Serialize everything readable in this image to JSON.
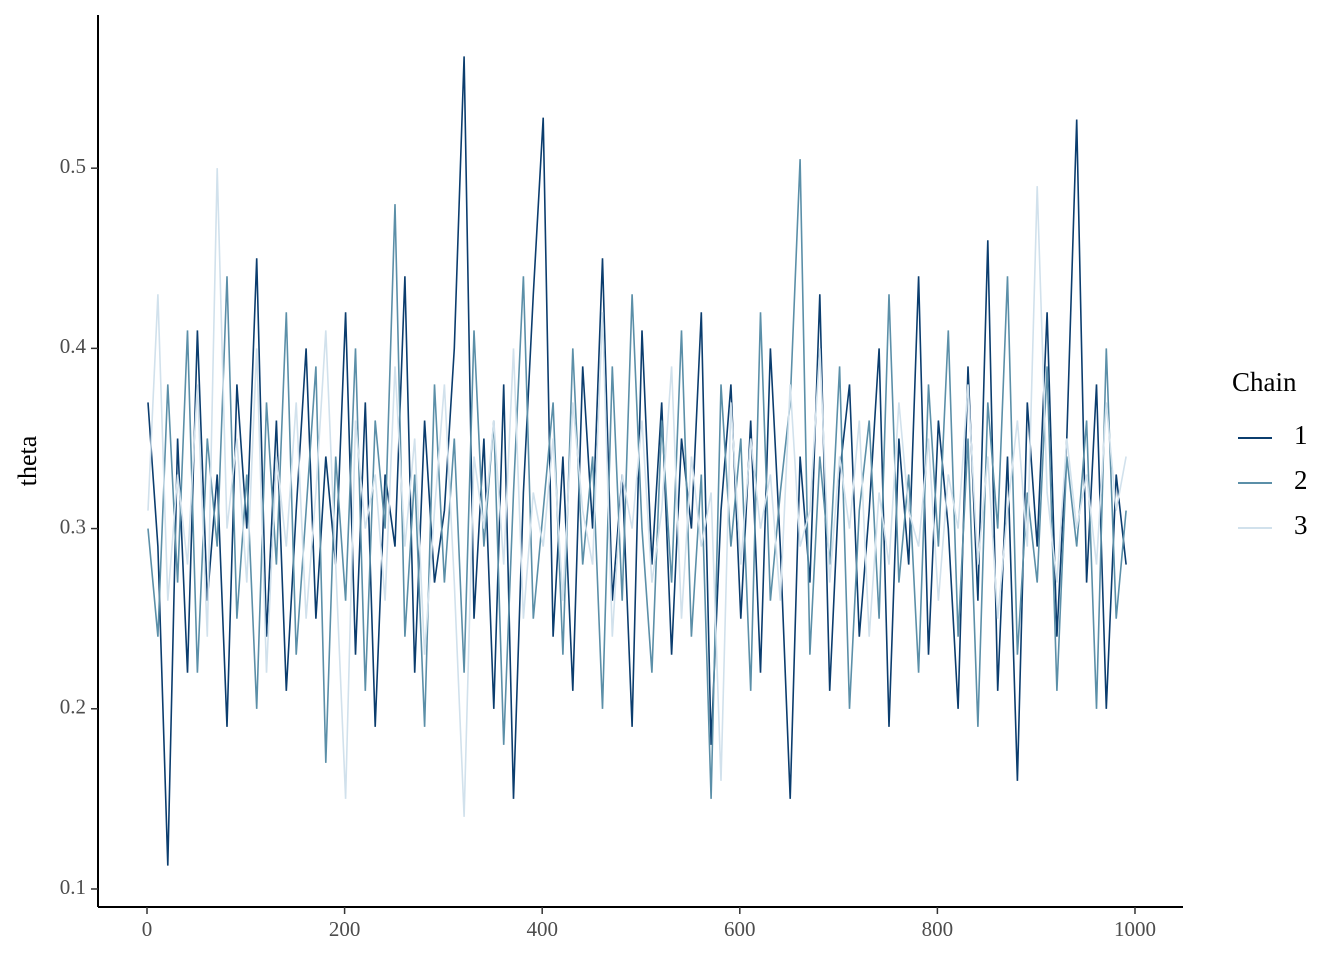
{
  "chart_data": {
    "type": "line",
    "y_label": "theta",
    "legend_title": "Chain",
    "legend_position": "right",
    "xlim": [
      -49.6,
      1048.6
    ],
    "ylim": [
      0.09,
      0.585
    ],
    "xticks": [
      0,
      200,
      400,
      600,
      800,
      1000
    ],
    "yticks": [
      0.1,
      0.2,
      0.3,
      0.4,
      0.5
    ],
    "grid": false,
    "x": [
      1,
      11,
      21,
      31,
      41,
      51,
      61,
      71,
      81,
      91,
      101,
      111,
      121,
      131,
      141,
      151,
      161,
      171,
      181,
      191,
      201,
      211,
      221,
      231,
      241,
      251,
      261,
      271,
      281,
      291,
      301,
      311,
      321,
      331,
      341,
      351,
      361,
      371,
      381,
      391,
      401,
      411,
      421,
      431,
      441,
      451,
      461,
      471,
      481,
      491,
      501,
      511,
      521,
      531,
      541,
      551,
      561,
      571,
      581,
      591,
      601,
      611,
      621,
      631,
      641,
      651,
      661,
      671,
      681,
      691,
      701,
      711,
      721,
      731,
      741,
      751,
      761,
      771,
      781,
      791,
      801,
      811,
      821,
      831,
      841,
      851,
      861,
      871,
      881,
      891,
      901,
      911,
      921,
      931,
      941,
      951,
      961,
      971,
      981,
      991
    ],
    "series": [
      {
        "name": "1",
        "color": "#0b3d6e",
        "values": [
          0.37,
          0.29,
          0.113,
          0.35,
          0.22,
          0.41,
          0.26,
          0.33,
          0.19,
          0.38,
          0.3,
          0.45,
          0.24,
          0.36,
          0.21,
          0.31,
          0.4,
          0.25,
          0.34,
          0.28,
          0.42,
          0.23,
          0.37,
          0.19,
          0.33,
          0.29,
          0.44,
          0.22,
          0.36,
          0.27,
          0.31,
          0.4,
          0.562,
          0.25,
          0.35,
          0.2,
          0.38,
          0.15,
          0.32,
          0.43,
          0.528,
          0.24,
          0.34,
          0.21,
          0.39,
          0.3,
          0.45,
          0.26,
          0.33,
          0.19,
          0.41,
          0.28,
          0.37,
          0.23,
          0.35,
          0.3,
          0.42,
          0.18,
          0.31,
          0.38,
          0.25,
          0.36,
          0.22,
          0.4,
          0.29,
          0.15,
          0.34,
          0.27,
          0.43,
          0.21,
          0.33,
          0.38,
          0.24,
          0.31,
          0.4,
          0.19,
          0.35,
          0.28,
          0.44,
          0.23,
          0.36,
          0.3,
          0.2,
          0.39,
          0.26,
          0.46,
          0.21,
          0.34,
          0.16,
          0.37,
          0.29,
          0.42,
          0.24,
          0.35,
          0.527,
          0.27,
          0.38,
          0.2,
          0.33,
          0.28
        ]
      },
      {
        "name": "2",
        "color": "#5b8fa8",
        "values": [
          0.3,
          0.24,
          0.38,
          0.27,
          0.41,
          0.22,
          0.35,
          0.29,
          0.44,
          0.25,
          0.33,
          0.2,
          0.37,
          0.28,
          0.42,
          0.23,
          0.31,
          0.39,
          0.17,
          0.34,
          0.26,
          0.4,
          0.21,
          0.36,
          0.3,
          0.48,
          0.24,
          0.33,
          0.19,
          0.38,
          0.27,
          0.35,
          0.22,
          0.41,
          0.29,
          0.36,
          0.18,
          0.32,
          0.44,
          0.25,
          0.31,
          0.37,
          0.23,
          0.4,
          0.28,
          0.34,
          0.2,
          0.39,
          0.26,
          0.43,
          0.3,
          0.22,
          0.36,
          0.27,
          0.41,
          0.24,
          0.33,
          0.15,
          0.38,
          0.29,
          0.35,
          0.21,
          0.42,
          0.26,
          0.32,
          0.37,
          0.505,
          0.23,
          0.34,
          0.28,
          0.39,
          0.2,
          0.31,
          0.36,
          0.25,
          0.43,
          0.27,
          0.33,
          0.22,
          0.38,
          0.29,
          0.41,
          0.24,
          0.35,
          0.19,
          0.37,
          0.3,
          0.44,
          0.23,
          0.32,
          0.27,
          0.39,
          0.21,
          0.34,
          0.29,
          0.36,
          0.2,
          0.4,
          0.25,
          0.31
        ]
      },
      {
        "name": "3",
        "color": "#d1e1ec",
        "values": [
          0.31,
          0.43,
          0.26,
          0.33,
          0.28,
          0.38,
          0.24,
          0.5,
          0.3,
          0.35,
          0.27,
          0.4,
          0.22,
          0.34,
          0.29,
          0.37,
          0.25,
          0.32,
          0.41,
          0.28,
          0.15,
          0.36,
          0.3,
          0.33,
          0.26,
          0.39,
          0.29,
          0.35,
          0.23,
          0.31,
          0.38,
          0.27,
          0.14,
          0.34,
          0.3,
          0.36,
          0.28,
          0.4,
          0.25,
          0.32,
          0.29,
          0.35,
          0.26,
          0.37,
          0.31,
          0.28,
          0.42,
          0.24,
          0.33,
          0.3,
          0.36,
          0.27,
          0.31,
          0.39,
          0.25,
          0.34,
          0.29,
          0.32,
          0.16,
          0.37,
          0.28,
          0.35,
          0.3,
          0.33,
          0.26,
          0.38,
          0.29,
          0.31,
          0.4,
          0.27,
          0.34,
          0.3,
          0.36,
          0.24,
          0.32,
          0.28,
          0.37,
          0.31,
          0.29,
          0.35,
          0.26,
          0.33,
          0.3,
          0.38,
          0.28,
          0.34,
          0.25,
          0.31,
          0.36,
          0.29,
          0.49,
          0.32,
          0.27,
          0.35,
          0.3,
          0.33,
          0.28,
          0.37,
          0.31,
          0.34
        ]
      }
    ]
  }
}
